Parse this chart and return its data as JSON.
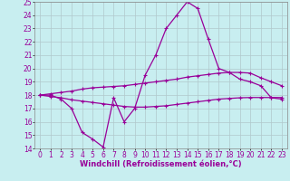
{
  "title": "",
  "xlabel": "Windchill (Refroidissement éolien,°C)",
  "ylabel": "",
  "background_color": "#c8eef0",
  "line_color": "#990099",
  "xlim": [
    -0.5,
    23.5
  ],
  "ylim": [
    14,
    25
  ],
  "xticks": [
    0,
    1,
    2,
    3,
    4,
    5,
    6,
    7,
    8,
    9,
    10,
    11,
    12,
    13,
    14,
    15,
    16,
    17,
    18,
    19,
    20,
    21,
    22,
    23
  ],
  "yticks": [
    14,
    15,
    16,
    17,
    18,
    19,
    20,
    21,
    22,
    23,
    24,
    25
  ],
  "x": [
    0,
    1,
    2,
    3,
    4,
    5,
    6,
    7,
    8,
    9,
    10,
    11,
    12,
    13,
    14,
    15,
    16,
    17,
    18,
    19,
    20,
    21,
    22,
    23
  ],
  "line1": [
    18.0,
    18.0,
    17.7,
    17.0,
    15.2,
    14.7,
    14.1,
    17.8,
    16.0,
    17.0,
    19.5,
    21.0,
    23.0,
    24.0,
    25.0,
    24.5,
    22.2,
    20.0,
    19.7,
    19.2,
    19.0,
    18.7,
    17.8,
    17.7
  ],
  "line2": [
    18.0,
    18.1,
    18.2,
    18.3,
    18.45,
    18.55,
    18.6,
    18.65,
    18.7,
    18.8,
    18.9,
    19.0,
    19.1,
    19.2,
    19.35,
    19.45,
    19.55,
    19.65,
    19.7,
    19.7,
    19.65,
    19.3,
    19.0,
    18.7
  ],
  "line3": [
    18.0,
    17.9,
    17.8,
    17.65,
    17.55,
    17.45,
    17.35,
    17.25,
    17.15,
    17.1,
    17.1,
    17.15,
    17.2,
    17.3,
    17.4,
    17.5,
    17.6,
    17.7,
    17.75,
    17.8,
    17.82,
    17.82,
    17.82,
    17.82
  ],
  "grid_color": "#b0c8cc",
  "tick_fontsize": 5.5,
  "xlabel_fontsize": 6.0
}
